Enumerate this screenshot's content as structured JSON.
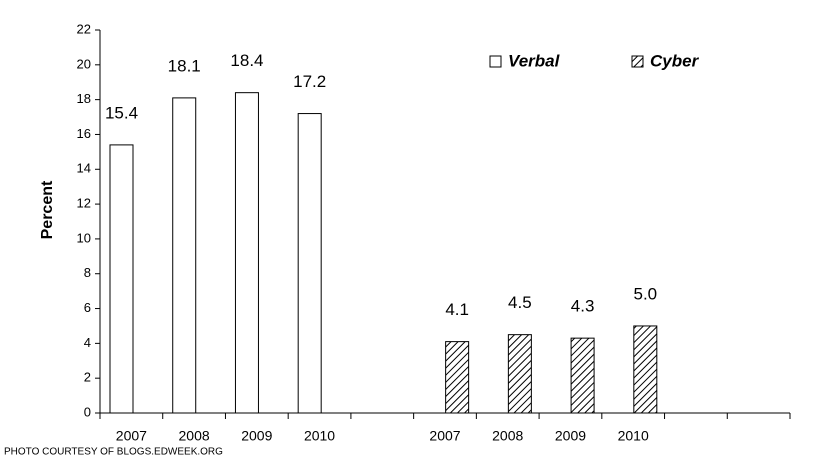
{
  "chart_data": {
    "type": "bar",
    "y_label": "Percent",
    "annotation": "PHOTO COURTESY OF BLOGS.EDWEEK.ORG",
    "categories": [
      "2007",
      "2008",
      "2009",
      "2010",
      null,
      "2007",
      "2008",
      "2009",
      "2010",
      null,
      null
    ],
    "series": [
      {
        "name": "Verbal",
        "color": "#ffffff",
        "pattern": "none",
        "values": [
          15.4,
          18.1,
          18.4,
          17.2,
          null,
          null,
          null,
          null,
          null,
          null,
          null
        ],
        "value_labels": [
          "15.4",
          "18.1",
          "18.4",
          "17.2",
          null,
          null,
          null,
          null,
          null,
          null,
          null
        ]
      },
      {
        "name": "Cyber",
        "color": "#ffffff",
        "pattern": "hatch",
        "values": [
          null,
          null,
          null,
          null,
          null,
          4.1,
          4.5,
          4.3,
          5,
          null,
          null
        ],
        "value_labels": [
          null,
          null,
          null,
          null,
          null,
          "4.1",
          "4.5",
          "4.3",
          "5.0",
          null,
          null
        ]
      }
    ],
    "ylim": [
      0,
      22
    ],
    "yticks": [
      0,
      2,
      4,
      6,
      8,
      10,
      12,
      14,
      16,
      18,
      20,
      22
    ],
    "legend": "top-right",
    "grid": false
  }
}
